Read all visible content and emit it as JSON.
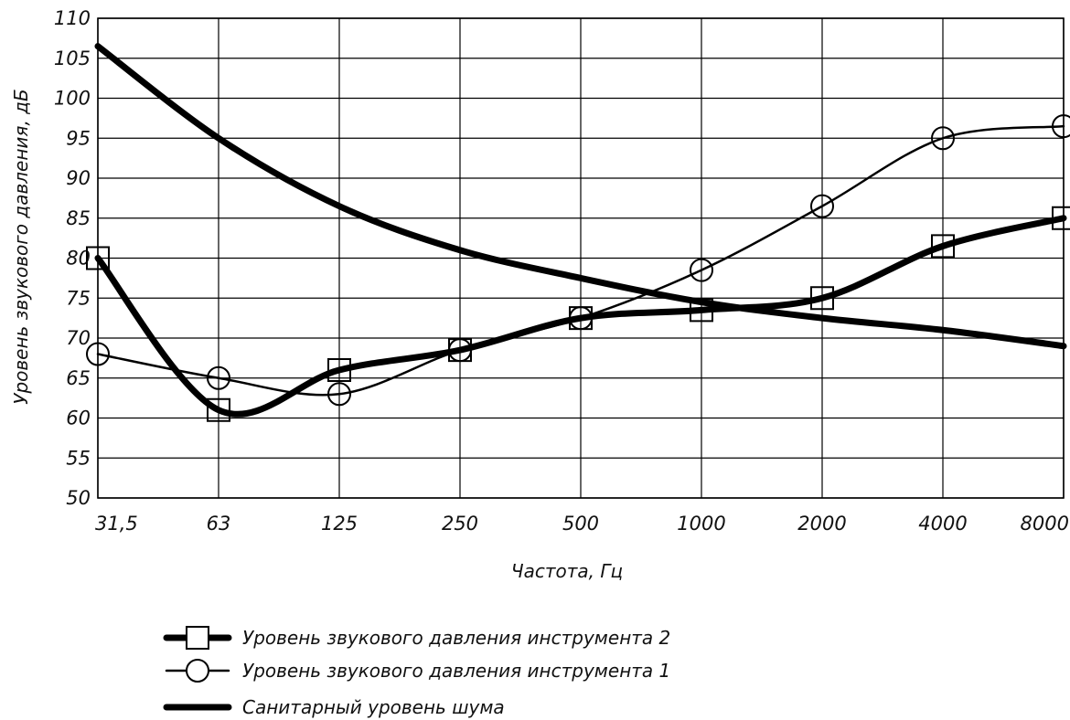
{
  "chart_data": {
    "type": "line",
    "xlabel": "Частота, Гц",
    "ylabel": "Уровень звукового давления, дБ",
    "categories": [
      "31,5",
      "63",
      "125",
      "250",
      "500",
      "1000",
      "2000",
      "4000",
      "8000"
    ],
    "ylim": [
      50,
      110
    ],
    "yticks": [
      50,
      55,
      60,
      65,
      70,
      75,
      80,
      85,
      90,
      95,
      100,
      105,
      110
    ],
    "grid": true,
    "legend_position": "bottom-left",
    "series": [
      {
        "name": "Уровень звукового давления инструмента 2",
        "marker": "square",
        "line": "thick",
        "values": [
          80,
          61,
          66,
          68.5,
          72.5,
          73.5,
          75,
          81.5,
          85
        ]
      },
      {
        "name": "Уровень звукового давления инструмента 1",
        "marker": "circle",
        "line": "thin",
        "values": [
          68,
          65,
          63,
          68.5,
          72.5,
          78.5,
          86.5,
          95,
          96.5
        ]
      },
      {
        "name": "Санитарный уровень шума",
        "marker": "none",
        "line": "thick",
        "values": [
          106.5,
          95,
          86.5,
          81,
          77.5,
          74.5,
          72.5,
          71,
          69
        ]
      }
    ]
  }
}
